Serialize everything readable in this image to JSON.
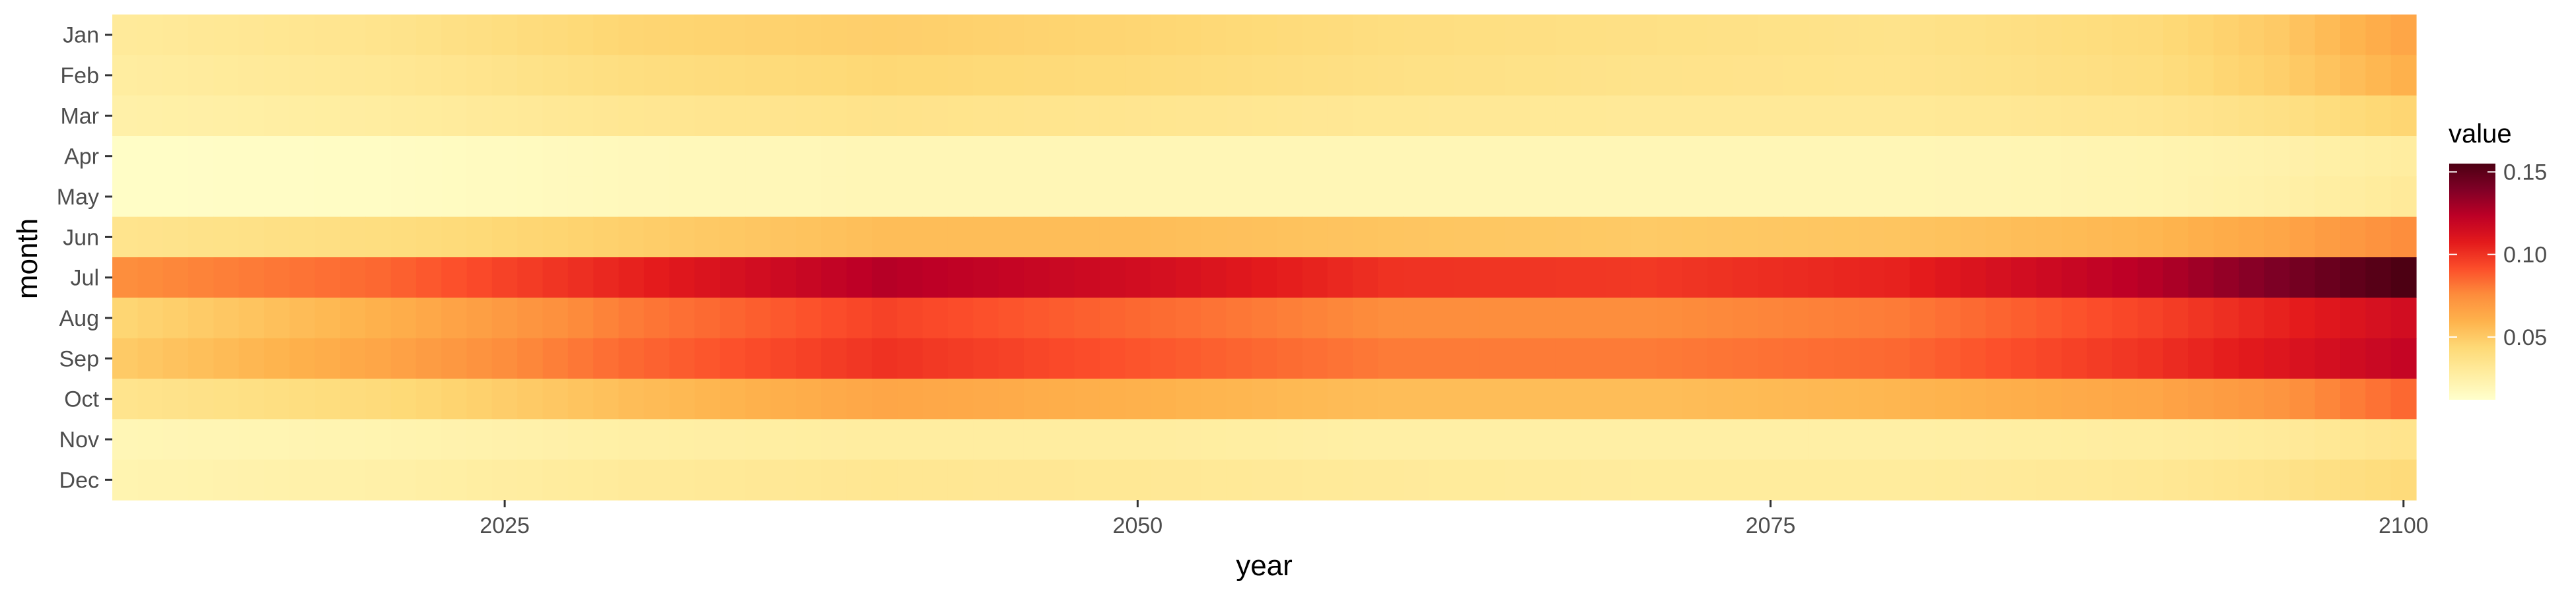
{
  "chart_data": {
    "type": "heatmap",
    "title": "",
    "xlabel": "year",
    "ylabel": "month",
    "x_range": [
      2010,
      2100
    ],
    "x_ticks": [
      "2025",
      "2050",
      "2075",
      "2100"
    ],
    "x_tick_values": [
      2025,
      2050,
      2075,
      2100
    ],
    "months": [
      "Jan",
      "Feb",
      "Mar",
      "Apr",
      "May",
      "Jun",
      "Jul",
      "Aug",
      "Sep",
      "Oct",
      "Nov",
      "Dec"
    ],
    "grid": false,
    "legend": {
      "title": "value",
      "position": "right",
      "ticks": [
        "0.05",
        "0.10",
        "0.15"
      ],
      "tick_values": [
        0.05,
        0.1,
        0.15
      ],
      "range": [
        0.012,
        0.155
      ]
    },
    "colorscale": [
      "#ffffcc",
      "#ffeda0",
      "#fed976",
      "#feb24c",
      "#fd8d3c",
      "#fc4e2a",
      "#e31a1c",
      "#bd0026",
      "#800026",
      "#4d0013"
    ],
    "background": "#ebebeb",
    "years": [
      2010,
      2020,
      2030,
      2040,
      2050,
      2060,
      2070,
      2080,
      2090,
      2095,
      2100
    ],
    "series": [
      {
        "name": "Jan",
        "values": [
          0.03,
          0.035,
          0.045,
          0.048,
          0.045,
          0.04,
          0.038,
          0.036,
          0.042,
          0.05,
          0.065
        ]
      },
      {
        "name": "Feb",
        "values": [
          0.028,
          0.032,
          0.04,
          0.044,
          0.042,
          0.038,
          0.036,
          0.035,
          0.04,
          0.048,
          0.06
        ]
      },
      {
        "name": "Mar",
        "values": [
          0.025,
          0.028,
          0.033,
          0.036,
          0.034,
          0.032,
          0.031,
          0.031,
          0.034,
          0.038,
          0.045
        ]
      },
      {
        "name": "Apr",
        "values": [
          0.014,
          0.015,
          0.018,
          0.02,
          0.02,
          0.02,
          0.02,
          0.02,
          0.022,
          0.024,
          0.028
        ]
      },
      {
        "name": "May",
        "values": [
          0.014,
          0.015,
          0.018,
          0.02,
          0.02,
          0.02,
          0.02,
          0.02,
          0.022,
          0.025,
          0.03
        ]
      },
      {
        "name": "Jun",
        "values": [
          0.035,
          0.04,
          0.048,
          0.055,
          0.055,
          0.052,
          0.05,
          0.052,
          0.058,
          0.065,
          0.075
        ]
      },
      {
        "name": "Jul",
        "values": [
          0.075,
          0.085,
          0.105,
          0.125,
          0.115,
          0.1,
          0.098,
          0.105,
          0.125,
          0.14,
          0.155
        ]
      },
      {
        "name": "Aug",
        "values": [
          0.045,
          0.06,
          0.08,
          0.095,
          0.085,
          0.075,
          0.075,
          0.08,
          0.095,
          0.105,
          0.115
        ]
      },
      {
        "name": "Sep",
        "values": [
          0.05,
          0.065,
          0.085,
          0.1,
          0.09,
          0.08,
          0.08,
          0.085,
          0.1,
          0.11,
          0.12
        ]
      },
      {
        "name": "Oct",
        "values": [
          0.035,
          0.042,
          0.055,
          0.065,
          0.06,
          0.055,
          0.055,
          0.058,
          0.065,
          0.072,
          0.085
        ]
      },
      {
        "name": "Nov",
        "values": [
          0.02,
          0.022,
          0.026,
          0.028,
          0.028,
          0.026,
          0.026,
          0.026,
          0.028,
          0.03,
          0.035
        ]
      },
      {
        "name": "Dec",
        "values": [
          0.022,
          0.025,
          0.03,
          0.033,
          0.032,
          0.03,
          0.029,
          0.029,
          0.032,
          0.036,
          0.042
        ]
      }
    ]
  }
}
